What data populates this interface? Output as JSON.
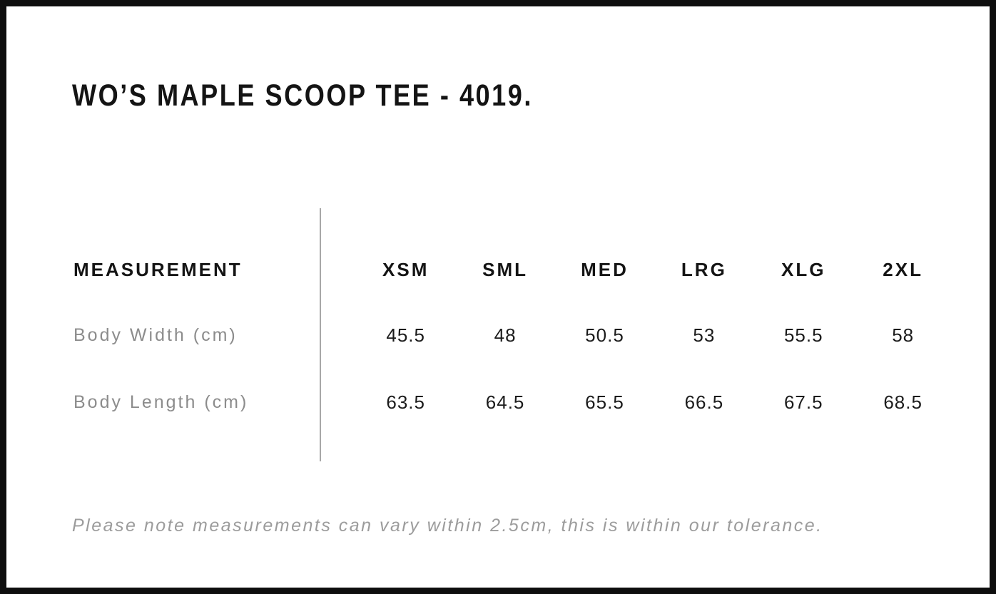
{
  "title": "WO’S MAPLE SCOOP TEE - 4019.",
  "table": {
    "header_label": "MEASUREMENT",
    "size_headers": [
      "XSM",
      "SML",
      "MED",
      "LRG",
      "XLG",
      "2XL"
    ],
    "rows": [
      {
        "label": "Body Width (cm)",
        "values": [
          "45.5",
          "48",
          "50.5",
          "53",
          "55.5",
          "58"
        ]
      },
      {
        "label": "Body Length (cm)",
        "values": [
          "63.5",
          "64.5",
          "65.5",
          "66.5",
          "67.5",
          "68.5"
        ]
      }
    ]
  },
  "footer_note": "Please note measurements can vary within 2.5cm, this is within our tolerance.",
  "colors": {
    "frame": "#0e0e0e",
    "text_dark": "#141414",
    "label_gray": "#8c8c8c",
    "note_gray": "#9c9c9c",
    "divider_gray": "#a8a8a8",
    "background": "#ffffff"
  }
}
